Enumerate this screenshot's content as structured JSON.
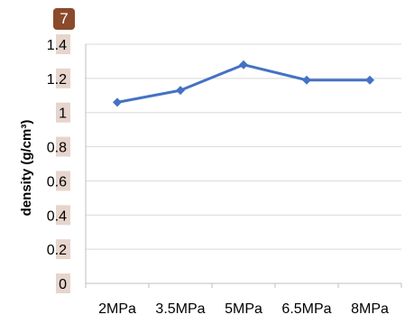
{
  "figure": {
    "badge": "7"
  },
  "chart_data": {
    "type": "line",
    "categories": [
      "2MPa",
      "3.5MPa",
      "5MPa",
      "6.5MPa",
      "8MPa"
    ],
    "series": [
      {
        "values": [
          1.06,
          1.13,
          1.28,
          1.19,
          1.19
        ],
        "color": "#4472c4"
      }
    ],
    "ylabel": "density (g/cm³)",
    "ylim": [
      0,
      1.4
    ],
    "yticks": [
      0,
      0.2,
      0.4,
      0.6,
      0.8,
      1,
      1.2,
      1.4
    ],
    "yticklabels": [
      "0",
      "0.2",
      "0.4",
      "0.6",
      "0.8",
      "1",
      "1.2",
      "1.4"
    ],
    "grid": true,
    "marker": "diamond",
    "tick_label_highlight": "#e6d5cc"
  }
}
